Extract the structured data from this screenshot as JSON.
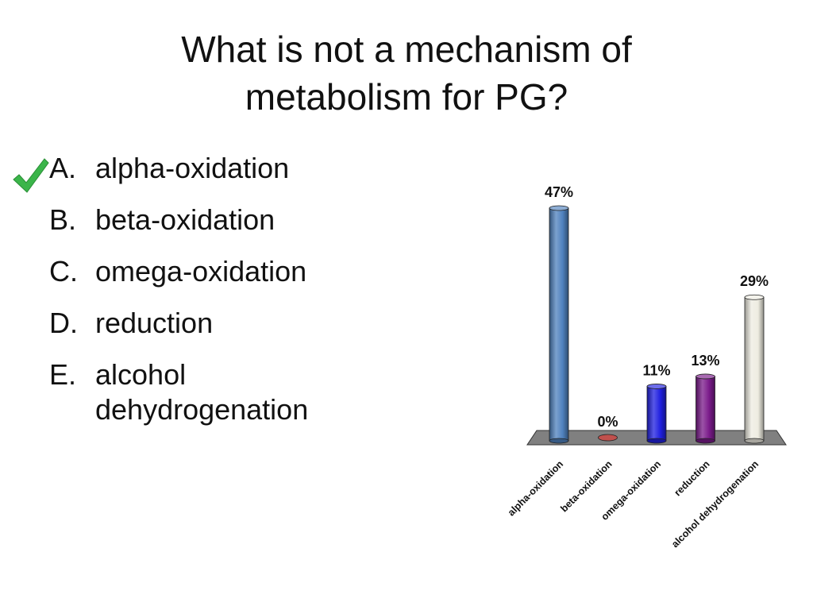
{
  "slide": {
    "title_line1": "What is not a mechanism of",
    "title_line2": "metabolism for PG?",
    "answers": [
      {
        "letter": "A.",
        "text": "alpha-oxidation",
        "correct": true
      },
      {
        "letter": "B.",
        "text": "beta-oxidation",
        "correct": false
      },
      {
        "letter": "C.",
        "text": "omega-oxidation",
        "correct": false
      },
      {
        "letter": "D.",
        "text": "reduction",
        "correct": false
      },
      {
        "letter": "E.",
        "text": "alcohol dehydrogenation",
        "correct": false
      }
    ],
    "correct_icon": "checkmark-icon",
    "check_color": "#3bb54a"
  },
  "chart_data": {
    "type": "bar",
    "categories": [
      "alpha-oxidation",
      "beta-oxidation",
      "omega-oxidation",
      "reduction",
      "alcohol dehydrogenation"
    ],
    "values": [
      47,
      0,
      11,
      13,
      29
    ],
    "value_labels": [
      "47%",
      "0%",
      "11%",
      "13%",
      "29%"
    ],
    "colors": [
      "#4f81bd",
      "#c0504d",
      "#1f1fe0",
      "#7a1a8a",
      "#eeece1"
    ],
    "ylim": [
      0,
      47
    ],
    "grid": false,
    "legend": "none",
    "floor_color": "#808080",
    "style": "3d-cylinder"
  }
}
